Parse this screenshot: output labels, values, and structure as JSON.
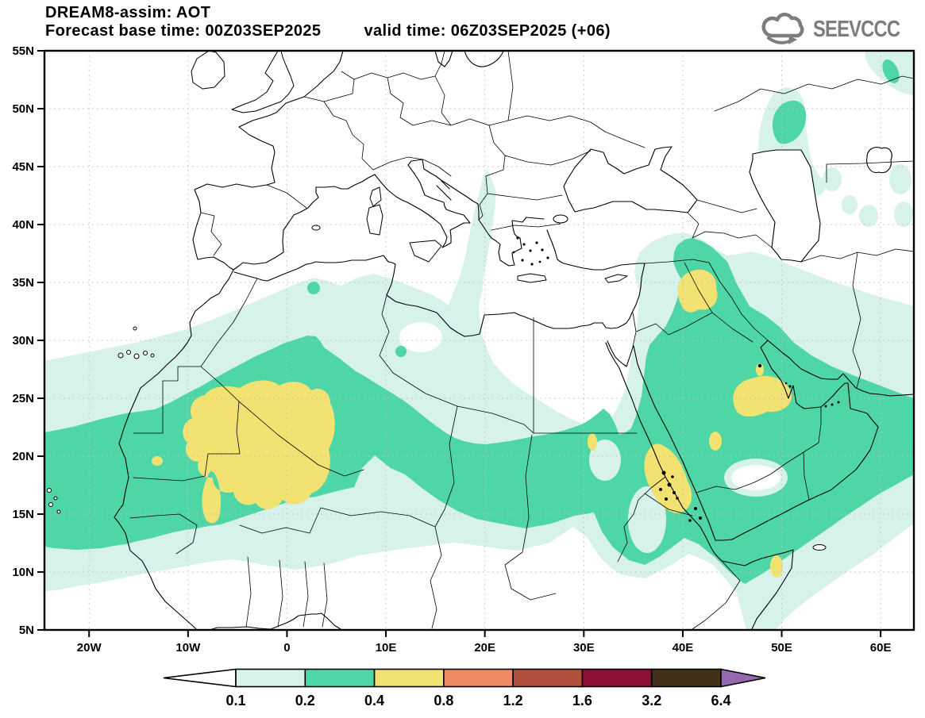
{
  "header": {
    "title": "DREAM8-assim: AOT",
    "base_time_label": "Forecast base time: 00Z03SEP2025",
    "valid_time_label": "valid time: 06Z03SEP2025 (+06)"
  },
  "logo": {
    "text": "SEEVCCC",
    "color": "#7d7d7d"
  },
  "map": {
    "y_axis_labels": [
      "55N",
      "50N",
      "45N",
      "40N",
      "35N",
      "30N",
      "25N",
      "20N",
      "15N",
      "10N",
      "5N"
    ],
    "x_axis_labels": [
      "20W",
      "10W",
      "0",
      "10E",
      "20E",
      "30E",
      "40E",
      "50E",
      "60E"
    ]
  },
  "colorbar": {
    "tick_labels": [
      "0.1",
      "0.2",
      "0.4",
      "0.8",
      "1.2",
      "1.6",
      "3.2",
      "6.4"
    ],
    "segment_colors": [
      "#d6f2ea",
      "#4fd6a7",
      "#f2e271",
      "#ee8a63",
      "#b2503d",
      "#8d1136",
      "#42301b"
    ],
    "under_arrow_color": "#ffffff",
    "over_arrow_color": "#9569ae",
    "outline_color": "#000000"
  },
  "chart_data": {
    "type": "filled-contour-map",
    "title": "DREAM8-assim: AOT",
    "variable": "AOT (aerosol optical thickness)",
    "forecast_base_time": "00Z03SEP2025",
    "valid_time": "06Z03SEP2025 (+06)",
    "extent": {
      "lon_min": -25,
      "lon_max": 63,
      "lat_min": 5,
      "lat_max": 55
    },
    "x_tick_labels": [
      "20W",
      "10W",
      "0",
      "10E",
      "20E",
      "30E",
      "40E",
      "50E",
      "60E"
    ],
    "y_tick_labels": [
      "55N",
      "50N",
      "45N",
      "40N",
      "35N",
      "30N",
      "25N",
      "20N",
      "15N",
      "10N",
      "5N"
    ],
    "contour_levels": [
      0.1,
      0.2,
      0.4,
      0.8,
      1.2,
      1.6,
      3.2,
      6.4
    ],
    "fill_colors": {
      "0.1-0.2": "#d6f2ea",
      "0.2-0.4": "#4fd6a7",
      "0.4-0.8": "#f2e271",
      "0.8-1.2": "#ee8a63",
      "1.2-1.6": "#b2503d",
      "1.6-3.2": "#8d1136",
      "3.2-6.4": "#42301b",
      ">6.4": "#9569ae"
    },
    "grid": "dotted, 10 deg lon x 5 deg lat",
    "features": [
      {
        "region": "Mauritania / Mali (West Africa)",
        "max_band": "0.4-0.8"
      },
      {
        "region": "Northern Iraq",
        "max_band": "0.4-0.8"
      },
      {
        "region": "Central Saudi Arabia / Persian Gulf coast",
        "max_band": "0.4-0.8"
      },
      {
        "region": "Sudan-Eritrea Red Sea coast",
        "max_band": "0.4-0.8"
      },
      {
        "region": "Somalia coast",
        "max_band": "0.4-0.8"
      },
      {
        "region": "Sahara-Sahel belt from Atlantic to Chad",
        "max_band": "0.2-0.4"
      },
      {
        "region": "Arabian Peninsula, Iraq, Horn of Africa",
        "max_band": "0.2-0.4"
      },
      {
        "region": "North of Caspian Sea",
        "max_band": "0.2-0.4"
      },
      {
        "region": "Adriatic / Ionian streak",
        "max_band": "0.1-0.2"
      },
      {
        "region": "East of Caspian, NE Iran patches",
        "max_band": "0.1-0.2"
      }
    ]
  }
}
